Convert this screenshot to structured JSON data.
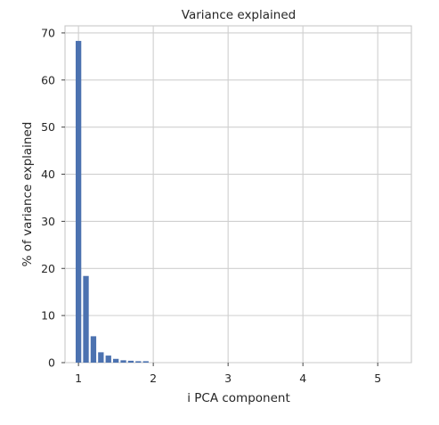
{
  "chart_data": {
    "type": "bar",
    "title": "Variance explained",
    "xlabel": "i PCA component",
    "ylabel": "% of variance explained",
    "xlim": [
      0.82,
      5.45
    ],
    "ylim": [
      0,
      71.5
    ],
    "x_ticks": [
      1,
      2,
      3,
      4,
      5
    ],
    "y_ticks": [
      0,
      10,
      20,
      30,
      40,
      50,
      60,
      70
    ],
    "grid": true,
    "bar_width": 0.075,
    "x": [
      1.0,
      1.1,
      1.2,
      1.3,
      1.4,
      1.5,
      1.6,
      1.7,
      1.8,
      1.9
    ],
    "values": [
      68.3,
      18.4,
      5.6,
      2.2,
      1.5,
      0.8,
      0.5,
      0.4,
      0.3,
      0.3
    ],
    "bar_color": "#4c72b0"
  }
}
